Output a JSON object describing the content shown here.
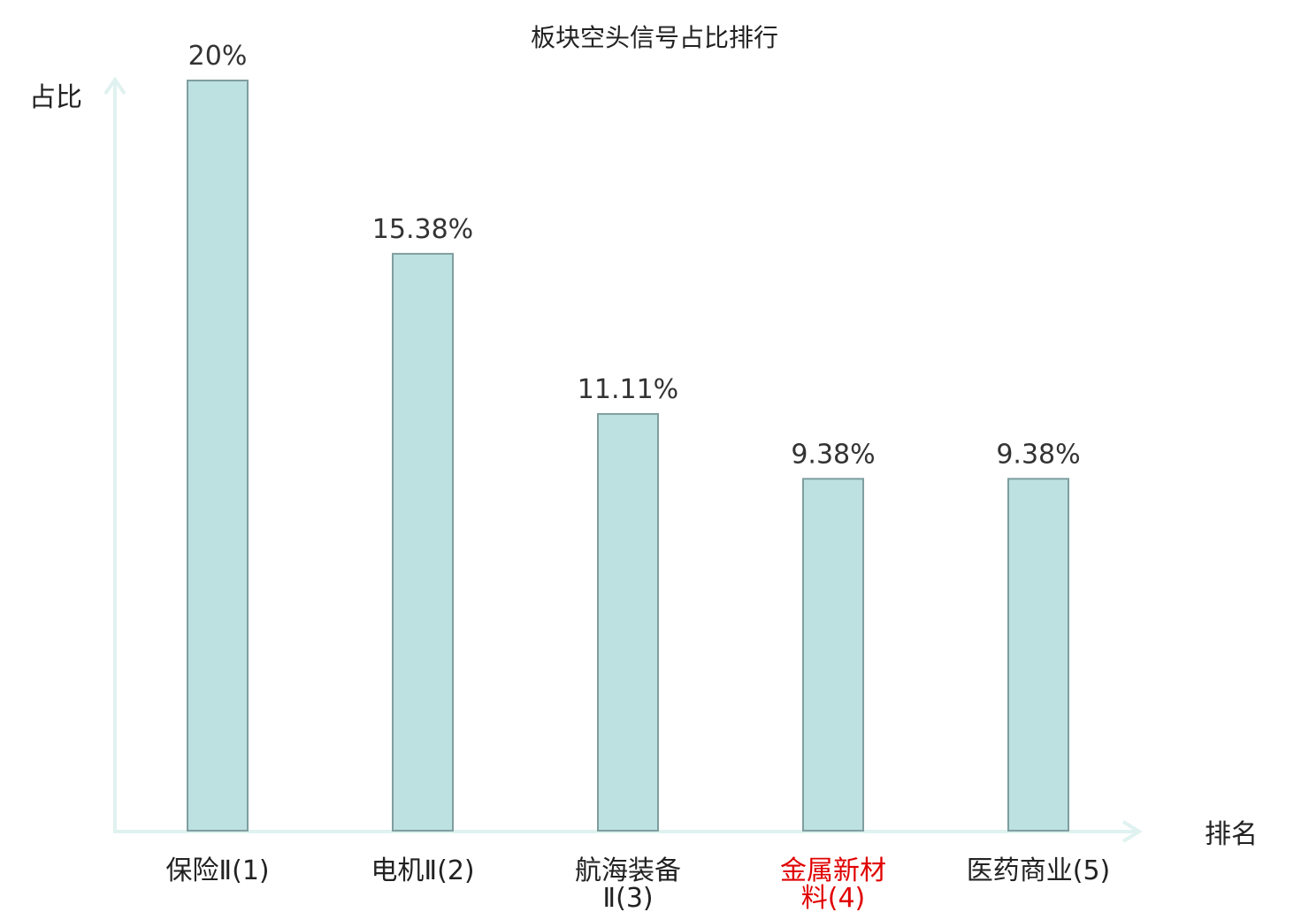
{
  "chart_data": {
    "type": "bar",
    "title": "板块空头信号占比排行",
    "ylabel": "占比",
    "xlabel": "排名",
    "categories": [
      {
        "lines": [
          "保险Ⅱ(1)"
        ],
        "color": "#222222"
      },
      {
        "lines": [
          "电机Ⅱ(2)"
        ],
        "color": "#222222"
      },
      {
        "lines": [
          "航海装备",
          "Ⅱ(3)"
        ],
        "color": "#222222"
      },
      {
        "lines": [
          "金属新材",
          "料(4)"
        ],
        "color": "#e00000"
      },
      {
        "lines": [
          "医药商业(5)"
        ],
        "color": "#222222"
      }
    ],
    "values": [
      20,
      15.38,
      11.11,
      9.38,
      9.38
    ],
    "value_labels": [
      "20%",
      "15.38%",
      "11.11%",
      "9.38%",
      "9.38%"
    ],
    "ylim": [
      0,
      20
    ],
    "grid": false,
    "colors": {
      "bar_fill": "#bde0e1",
      "bar_stroke": "#7f9ea0",
      "axis": "#e0f2ef",
      "highlight": "#e00000"
    }
  }
}
